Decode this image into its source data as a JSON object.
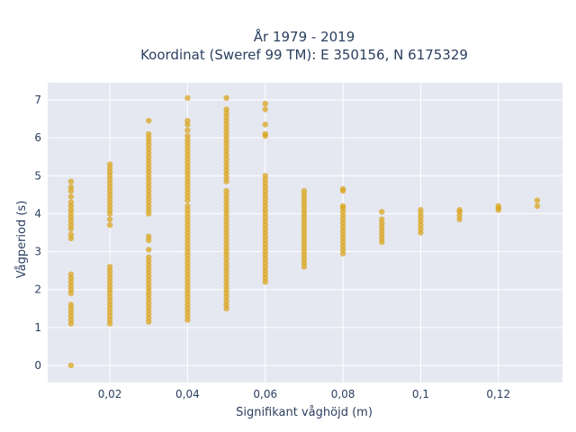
{
  "chart_data": {
    "type": "scatter",
    "title_line1": "År 1979 - 2019",
    "title_line2": "Koordinat (Sweref 99 TM): E 350156, N 6175329",
    "xlabel": "Signifikant våghöjd (m)",
    "ylabel": "Vågperiod (s)",
    "xlim": [
      0.004,
      0.1365
    ],
    "ylim": [
      -0.45,
      7.45
    ],
    "x_ticks": [
      0.02,
      0.04,
      0.06,
      0.08,
      0.1,
      0.12
    ],
    "x_tick_labels": [
      "0,02",
      "0,04",
      "0,06",
      "0,08",
      "0,1",
      "0,12"
    ],
    "y_ticks": [
      0,
      1,
      2,
      3,
      4,
      5,
      6,
      7
    ],
    "y_tick_labels": [
      "0",
      "1",
      "2",
      "3",
      "4",
      "5",
      "6",
      "7"
    ],
    "grid": true,
    "color": "#daa520",
    "series": [
      {
        "x_by_column": [
          {
            "x": 0.01,
            "y": [
              0.0,
              1.1,
              1.2,
              1.3,
              1.4,
              1.5,
              1.6,
              1.9,
              2.0,
              2.1,
              2.2,
              2.3,
              2.4,
              3.35,
              3.45,
              3.6,
              3.7,
              3.8,
              3.9,
              4.0,
              4.1,
              4.2,
              4.3,
              4.45,
              4.6,
              4.7,
              4.85
            ]
          },
          {
            "x": 0.02,
            "y": [
              1.1,
              1.2,
              1.3,
              1.4,
              1.5,
              1.6,
              1.7,
              1.8,
              1.9,
              2.0,
              2.1,
              2.2,
              2.3,
              2.4,
              2.5,
              2.6,
              3.7,
              3.85,
              4.0,
              4.1,
              4.2,
              4.3,
              4.4,
              4.5,
              4.6,
              4.7,
              4.8,
              4.9,
              5.0,
              5.1,
              5.2,
              5.3
            ]
          },
          {
            "x": 0.03,
            "y": [
              1.15,
              1.25,
              1.35,
              1.45,
              1.55,
              1.65,
              1.75,
              1.85,
              1.95,
              2.05,
              2.15,
              2.25,
              2.35,
              2.45,
              2.55,
              2.65,
              2.75,
              2.85,
              3.05,
              3.3,
              3.4,
              4.0,
              4.1,
              4.2,
              4.3,
              4.4,
              4.5,
              4.6,
              4.7,
              4.8,
              4.9,
              5.0,
              5.1,
              5.2,
              5.3,
              5.4,
              5.5,
              5.6,
              5.7,
              5.8,
              5.9,
              6.0,
              6.1,
              6.45
            ]
          },
          {
            "x": 0.04,
            "y": [
              1.2,
              1.3,
              1.4,
              1.5,
              1.6,
              1.7,
              1.8,
              1.9,
              2.0,
              2.1,
              2.2,
              2.3,
              2.4,
              2.5,
              2.6,
              2.7,
              2.8,
              2.9,
              3.0,
              3.1,
              3.2,
              3.3,
              3.4,
              3.5,
              3.6,
              3.7,
              3.8,
              3.9,
              4.0,
              4.1,
              4.2,
              4.35,
              4.45,
              4.55,
              4.65,
              4.75,
              4.85,
              4.95,
              5.05,
              5.15,
              5.25,
              5.35,
              5.45,
              5.55,
              5.65,
              5.75,
              5.85,
              5.95,
              6.05,
              6.2,
              6.35,
              6.45,
              7.05
            ]
          },
          {
            "x": 0.05,
            "y": [
              1.5,
              1.6,
              1.7,
              1.8,
              1.9,
              2.0,
              2.1,
              2.2,
              2.3,
              2.4,
              2.5,
              2.6,
              2.7,
              2.8,
              2.9,
              3.0,
              3.1,
              3.2,
              3.3,
              3.4,
              3.5,
              3.6,
              3.7,
              3.8,
              3.9,
              4.0,
              4.1,
              4.2,
              4.3,
              4.4,
              4.5,
              4.6,
              4.85,
              4.95,
              5.05,
              5.15,
              5.25,
              5.35,
              5.45,
              5.55,
              5.65,
              5.75,
              5.85,
              5.95,
              6.05,
              6.15,
              6.25,
              6.35,
              6.45,
              6.55,
              6.65,
              6.75,
              7.05
            ]
          },
          {
            "x": 0.06,
            "y": [
              2.2,
              2.3,
              2.4,
              2.5,
              2.6,
              2.7,
              2.8,
              2.9,
              3.0,
              3.1,
              3.2,
              3.3,
              3.4,
              3.5,
              3.6,
              3.7,
              3.8,
              3.9,
              4.0,
              4.1,
              4.2,
              4.3,
              4.4,
              4.5,
              4.6,
              4.7,
              4.8,
              4.9,
              5.0,
              6.05,
              6.1,
              6.35,
              6.75,
              6.9
            ]
          },
          {
            "x": 0.07,
            "y": [
              2.6,
              2.7,
              2.8,
              2.9,
              3.0,
              3.1,
              3.2,
              3.3,
              3.4,
              3.5,
              3.6,
              3.7,
              3.8,
              3.9,
              4.0,
              4.1,
              4.2,
              4.3,
              4.4,
              4.5,
              4.6
            ]
          },
          {
            "x": 0.08,
            "y": [
              2.95,
              3.05,
              3.15,
              3.25,
              3.35,
              3.45,
              3.55,
              3.65,
              3.75,
              3.85,
              3.95,
              4.05,
              4.15,
              4.2,
              4.6,
              4.65
            ]
          },
          {
            "x": 0.09,
            "y": [
              3.25,
              3.35,
              3.45,
              3.55,
              3.65,
              3.75,
              3.85,
              4.05
            ]
          },
          {
            "x": 0.1,
            "y": [
              3.5,
              3.6,
              3.7,
              3.8,
              3.9,
              4.0,
              4.1
            ]
          },
          {
            "x": 0.11,
            "y": [
              3.85,
              3.95,
              4.05,
              4.1
            ]
          },
          {
            "x": 0.12,
            "y": [
              4.1,
              4.15,
              4.2
            ]
          },
          {
            "x": 0.13,
            "y": [
              4.2,
              4.35
            ]
          }
        ]
      }
    ]
  }
}
